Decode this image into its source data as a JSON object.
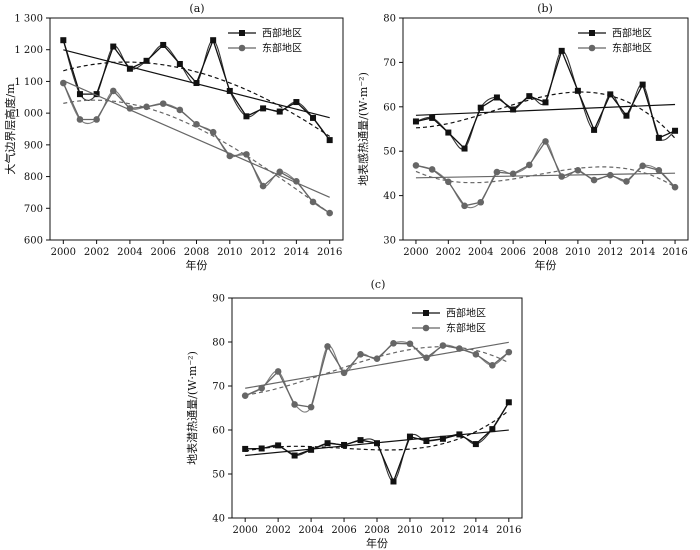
{
  "chart_data": [
    {
      "type": "line",
      "panel_label": "(a)",
      "xlabel": "年份",
      "ylabel": "大气边界层高度/m",
      "xlim": [
        1999.2,
        2016.8
      ],
      "ylim": [
        600,
        1300
      ],
      "xticks": [
        2000,
        2002,
        2004,
        2006,
        2008,
        2010,
        2012,
        2014,
        2016
      ],
      "xtick_labels": [
        "2000",
        "2002",
        "2004",
        "2006",
        "2008",
        "2010",
        "2012",
        "2014",
        "2016"
      ],
      "yticks": [
        600,
        700,
        800,
        900,
        1000,
        1100,
        1200,
        1300
      ],
      "ytick_labels": [
        "600",
        "700",
        "800",
        "900",
        "1 000",
        "1 100",
        "1 200",
        "1 300"
      ],
      "legend_position": "top-right",
      "x": [
        2000,
        2001,
        2002,
        2003,
        2004,
        2005,
        2006,
        2007,
        2008,
        2009,
        2010,
        2011,
        2012,
        2013,
        2014,
        2015,
        2016
      ],
      "series": [
        {
          "name": "西部地区",
          "marker": "square",
          "color": "#111111",
          "values": [
            1230,
            1060,
            1060,
            1210,
            1140,
            1165,
            1215,
            1155,
            1095,
            1230,
            1070,
            990,
            1015,
            1005,
            1035,
            985,
            915
          ]
        },
        {
          "name": "东部地区",
          "marker": "circle",
          "color": "#666666",
          "values": [
            1095,
            980,
            980,
            1070,
            1015,
            1020,
            1030,
            1010,
            965,
            940,
            865,
            870,
            770,
            815,
            785,
            720,
            685
          ]
        }
      ]
    },
    {
      "type": "line",
      "panel_label": "(b)",
      "xlabel": "年份",
      "ylabel": "地表感热通量/(W·m⁻²)",
      "xlim": [
        1999.2,
        2016.8
      ],
      "ylim": [
        30,
        80
      ],
      "xticks": [
        2000,
        2002,
        2004,
        2006,
        2008,
        2010,
        2012,
        2014,
        2016
      ],
      "xtick_labels": [
        "2000",
        "2002",
        "2004",
        "2006",
        "2008",
        "2010",
        "2012",
        "2014",
        "2016"
      ],
      "yticks": [
        30,
        40,
        50,
        60,
        70,
        80
      ],
      "ytick_labels": [
        "30",
        "40",
        "50",
        "60",
        "70",
        "80"
      ],
      "legend_position": "top-right",
      "x": [
        2000,
        2001,
        2002,
        2003,
        2004,
        2005,
        2006,
        2007,
        2008,
        2009,
        2010,
        2011,
        2012,
        2013,
        2014,
        2015,
        2016
      ],
      "series": [
        {
          "name": "西部地区",
          "marker": "square",
          "color": "#111111",
          "values": [
            56.7,
            57.5,
            54.2,
            50.6,
            59.8,
            62.1,
            59.4,
            62.4,
            61.0,
            72.6,
            63.6,
            54.8,
            62.8,
            58.0,
            65.0,
            53.0,
            54.6
          ]
        },
        {
          "name": "东部地区",
          "marker": "circle",
          "color": "#666666",
          "values": [
            46.8,
            45.9,
            43.1,
            37.7,
            38.5,
            45.3,
            44.9,
            46.9,
            52.2,
            44.3,
            45.7,
            43.5,
            44.6,
            43.2,
            46.7,
            45.7,
            41.9
          ]
        }
      ]
    },
    {
      "type": "line",
      "panel_label": "(c)",
      "xlabel": "年份",
      "ylabel": "地表潜热通量/(W·m⁻²)",
      "xlim": [
        1999.2,
        2016.8
      ],
      "ylim": [
        40,
        90
      ],
      "xticks": [
        2000,
        2002,
        2004,
        2006,
        2008,
        2010,
        2012,
        2014,
        2016
      ],
      "xtick_labels": [
        "2000",
        "2002",
        "2004",
        "2006",
        "2008",
        "2010",
        "2012",
        "2014",
        "2016"
      ],
      "yticks": [
        40,
        50,
        60,
        70,
        80,
        90
      ],
      "ytick_labels": [
        "40",
        "50",
        "60",
        "70",
        "80",
        "90"
      ],
      "legend_position": "top-right",
      "x": [
        2000,
        2001,
        2002,
        2003,
        2004,
        2005,
        2006,
        2007,
        2008,
        2009,
        2010,
        2011,
        2012,
        2013,
        2014,
        2015,
        2016
      ],
      "series": [
        {
          "name": "西部地区",
          "marker": "square",
          "color": "#111111",
          "values": [
            55.7,
            55.8,
            56.5,
            54.2,
            55.5,
            57.0,
            56.6,
            57.7,
            57.0,
            48.3,
            58.5,
            57.5,
            58.0,
            59.0,
            56.8,
            60.2,
            66.3
          ]
        },
        {
          "name": "东部地区",
          "marker": "circle",
          "color": "#666666",
          "values": [
            67.8,
            69.5,
            73.3,
            65.8,
            65.2,
            79.0,
            73.0,
            77.2,
            76.2,
            79.7,
            79.6,
            76.4,
            79.2,
            78.5,
            77.2,
            74.7,
            77.7
          ]
        }
      ]
    }
  ]
}
